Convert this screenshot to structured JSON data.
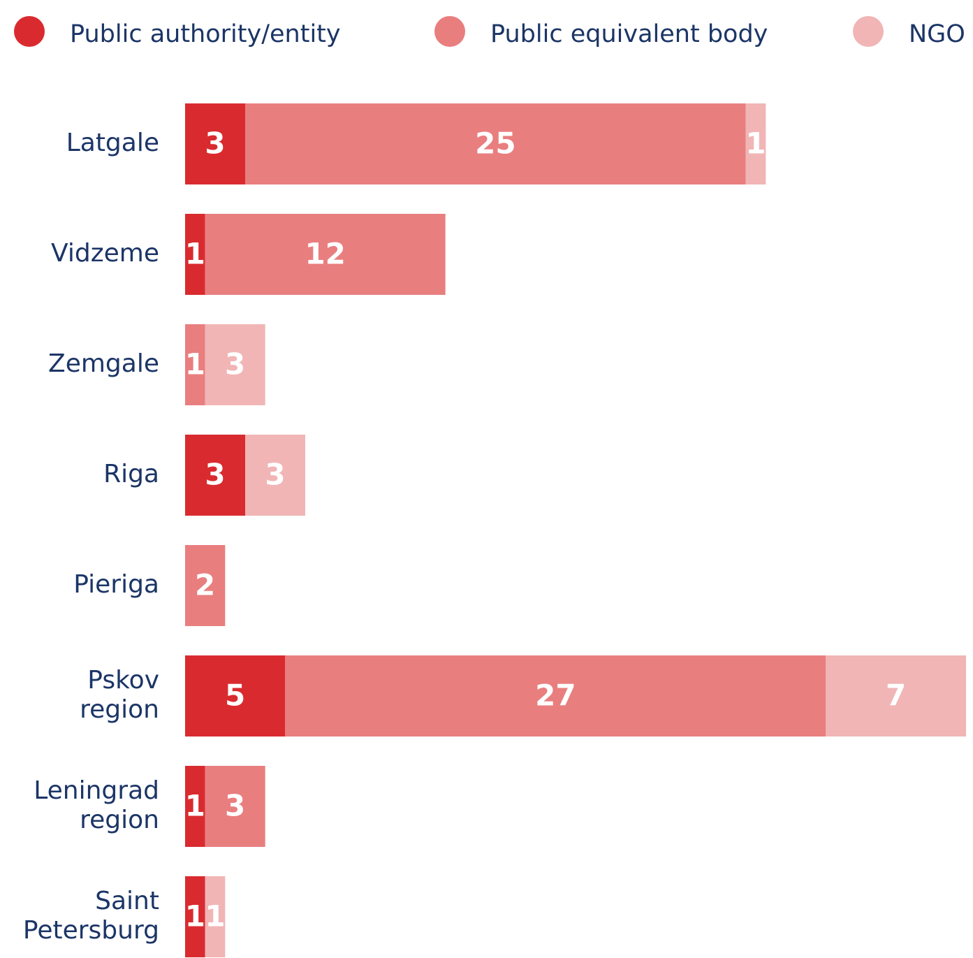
{
  "chart_data": {
    "type": "bar",
    "orientation": "horizontal",
    "stacked": true,
    "categories": [
      "Latgale",
      "Vidzeme",
      "Zemgale",
      "Riga",
      "Pieriga",
      "Pskov region",
      "Leningrad region",
      "Saint Petersburg"
    ],
    "series": [
      {
        "name": "Public authority/entity",
        "color": "#d92b2f",
        "values": [
          3,
          1,
          null,
          3,
          null,
          5,
          1,
          1
        ]
      },
      {
        "name": "Public equivalent body",
        "color": "#e97e7f",
        "values": [
          25,
          12,
          1,
          null,
          2,
          27,
          3,
          null
        ]
      },
      {
        "name": "NGO",
        "color": "#f1b5b5",
        "values": [
          1,
          null,
          3,
          3,
          null,
          7,
          null,
          1
        ]
      }
    ],
    "legend": "top"
  }
}
